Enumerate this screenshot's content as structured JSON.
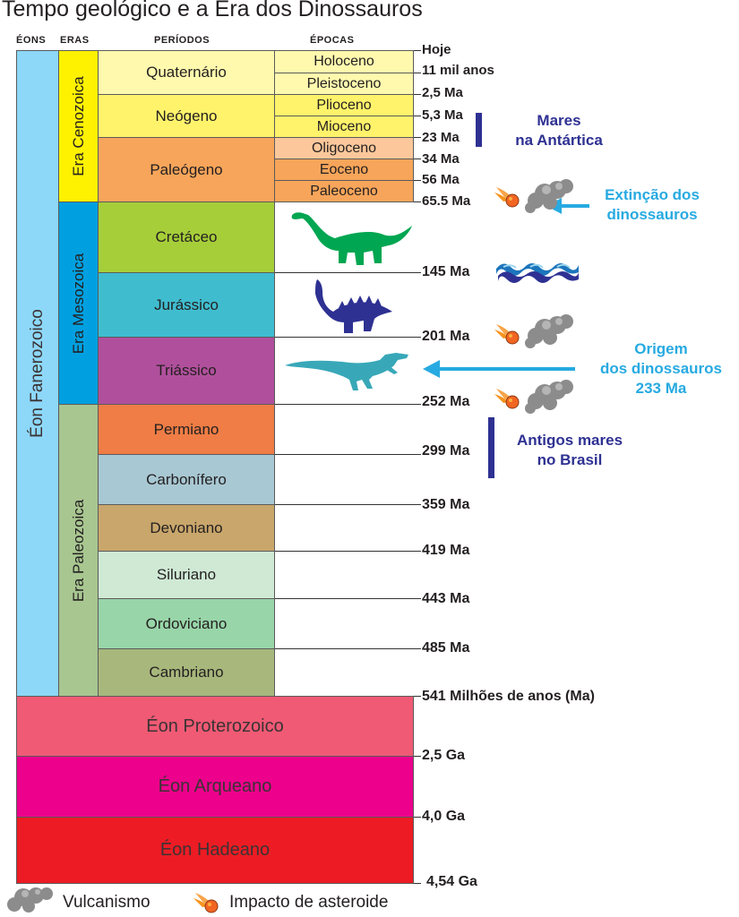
{
  "title": "Tempo geológico e a Era dos Dinossauros",
  "headers": {
    "eons": "ÉONS",
    "eras": "ERAS",
    "periods": "PERÍODOS",
    "epochs": "ÉPOCAS"
  },
  "eons": {
    "phanerozoic": "Éon Fanerozoico",
    "proterozoic": "Éon Proterozoico",
    "archean": "Éon Arqueano",
    "hadean": "Éon Hadeano"
  },
  "eras": {
    "cenozoic": "Era Cenozoica",
    "mesozoic": "Era Mesozoica",
    "paleozoic": "Era Paleozoica"
  },
  "periods": {
    "quaternary": "Quaternário",
    "neogene": "Neógeno",
    "paleogene": "Paleógeno",
    "cretaceous": "Cretáceo",
    "jurassic": "Jurássico",
    "triassic": "Triássico",
    "permian": "Permiano",
    "carboniferous": "Carbonífero",
    "devonian": "Devoniano",
    "silurian": "Siluriano",
    "ordovician": "Ordoviciano",
    "cambrian": "Cambriano"
  },
  "epochs": {
    "holocene": "Holoceno",
    "pleistocene": "Pleistoceno",
    "pliocene": "Plioceno",
    "miocene": "Mioceno",
    "oligocene": "Oligoceno",
    "eocene": "Eoceno",
    "paleocene": "Paleoceno"
  },
  "times": {
    "today": "Hoje",
    "t11k": "11 mil anos",
    "t2_5": "2,5 Ma",
    "t5_3": "5,3 Ma",
    "t23": "23 Ma",
    "t34": "34 Ma",
    "t56": "56 Ma",
    "t65": "65.5 Ma",
    "t145": "145 Ma",
    "t201": "201 Ma",
    "t252": "252 Ma",
    "t299": "299 Ma",
    "t359": "359 Ma",
    "t419": "419 Ma",
    "t443": "443 Ma",
    "t485": "485 Ma",
    "t541": "541 Milhões de anos (Ma)",
    "g2_5": "2,5 Ga",
    "g4_0": "4,0 Ga",
    "g4_54": "4,54 Ga"
  },
  "annotations": {
    "antarctica": [
      "Mares",
      "na Antártica"
    ],
    "extinction": [
      "Extinção dos",
      "dinossauros"
    ],
    "origin": [
      "Origem",
      "dos dinossauros",
      "233 Ma"
    ],
    "brazil": [
      "Antigos mares",
      "no Brasil"
    ]
  },
  "legend": {
    "volcanism": "Vulcanismo",
    "impact": "Impacto de asteroide"
  },
  "colors": {
    "phanerozoic": "#8dd8f8",
    "cenozoic_era": "#fff200",
    "mesozoic_era": "#00a0e0",
    "paleozoic_era": "#a8c690",
    "quaternary": "#fff9ae",
    "neogene": "#fff36b",
    "paleogene": "#f7a55a",
    "cretaceous": "#a6ce39",
    "jurassic": "#3fbdcf",
    "triassic": "#b0509c",
    "permian": "#ef7d45",
    "carboniferous": "#a8c8d3",
    "devonian": "#c9a66b",
    "silurian": "#cfe9d5",
    "ordovician": "#98d5a8",
    "cambrian": "#a8b87c",
    "proterozoic": "#f05a74",
    "archean": "#ec008c",
    "hadean": "#ed1c24",
    "navy": "#2e3192",
    "cyan": "#27aae1",
    "dino_green": "#00a651",
    "dino_blue": "#2e3192",
    "dino_teal": "#38a8b8"
  },
  "icons": [
    "volcano-smoke-icon",
    "asteroid-impact-icon",
    "sea-waves-icon",
    "sauropod-dinosaur",
    "ankylosaur-dinosaur",
    "theropod-dinosaur"
  ]
}
